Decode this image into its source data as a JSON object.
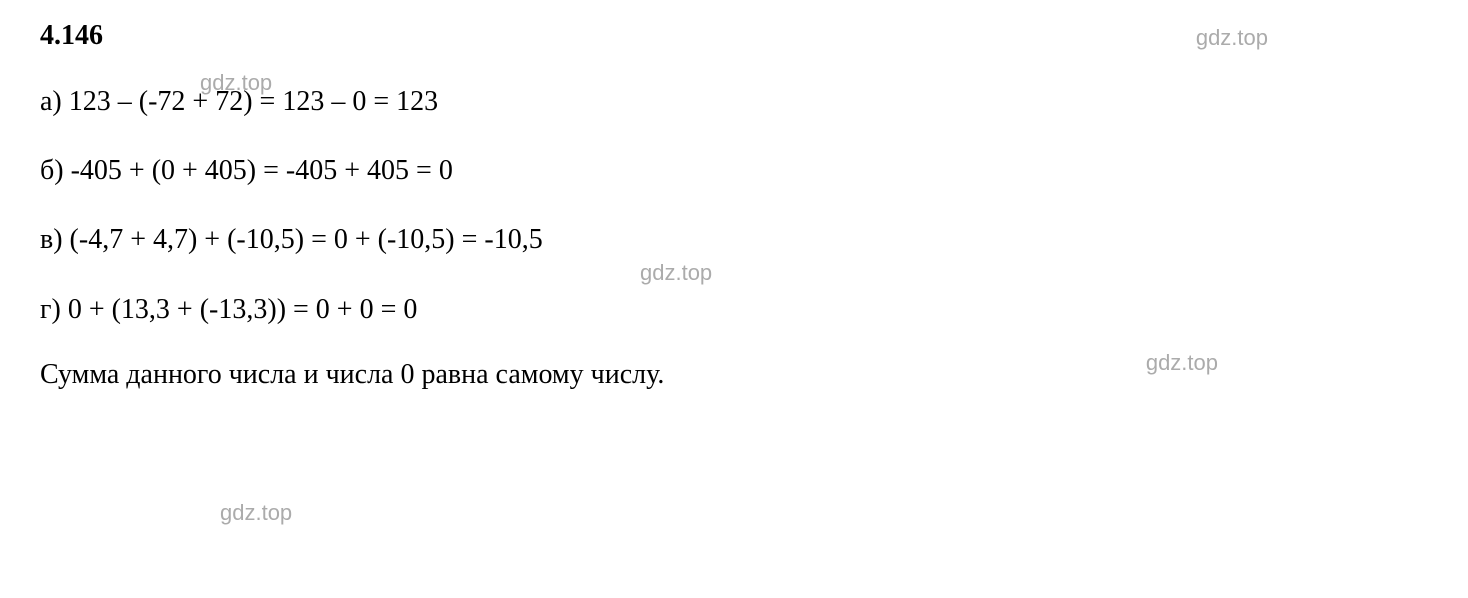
{
  "problem": {
    "number": "4.146",
    "equations": {
      "a": {
        "label": "а)",
        "expression": "123 – (-72 + 72) = 123 – 0 = 123"
      },
      "b": {
        "label": "б)",
        "expression": "-405 + (0 + 405) = -405 + 405 = 0"
      },
      "c": {
        "label": "в)",
        "expression": "(-4,7 + 4,7) + (-10,5) = 0 + (-10,5) = -10,5"
      },
      "d": {
        "label": "г)",
        "expression": "0 + (13,3 + (-13,3)) = 0 + 0 = 0"
      }
    },
    "conclusion": "Сумма данного числа и числа 0 равна самому числу."
  },
  "watermark": {
    "text": "gdz.top",
    "color": "#888888",
    "fontsize": 22
  },
  "styling": {
    "background_color": "#ffffff",
    "text_color": "#000000",
    "font_family": "Times New Roman",
    "body_fontsize": 28,
    "number_fontweight": "bold",
    "line_spacing": 30
  }
}
